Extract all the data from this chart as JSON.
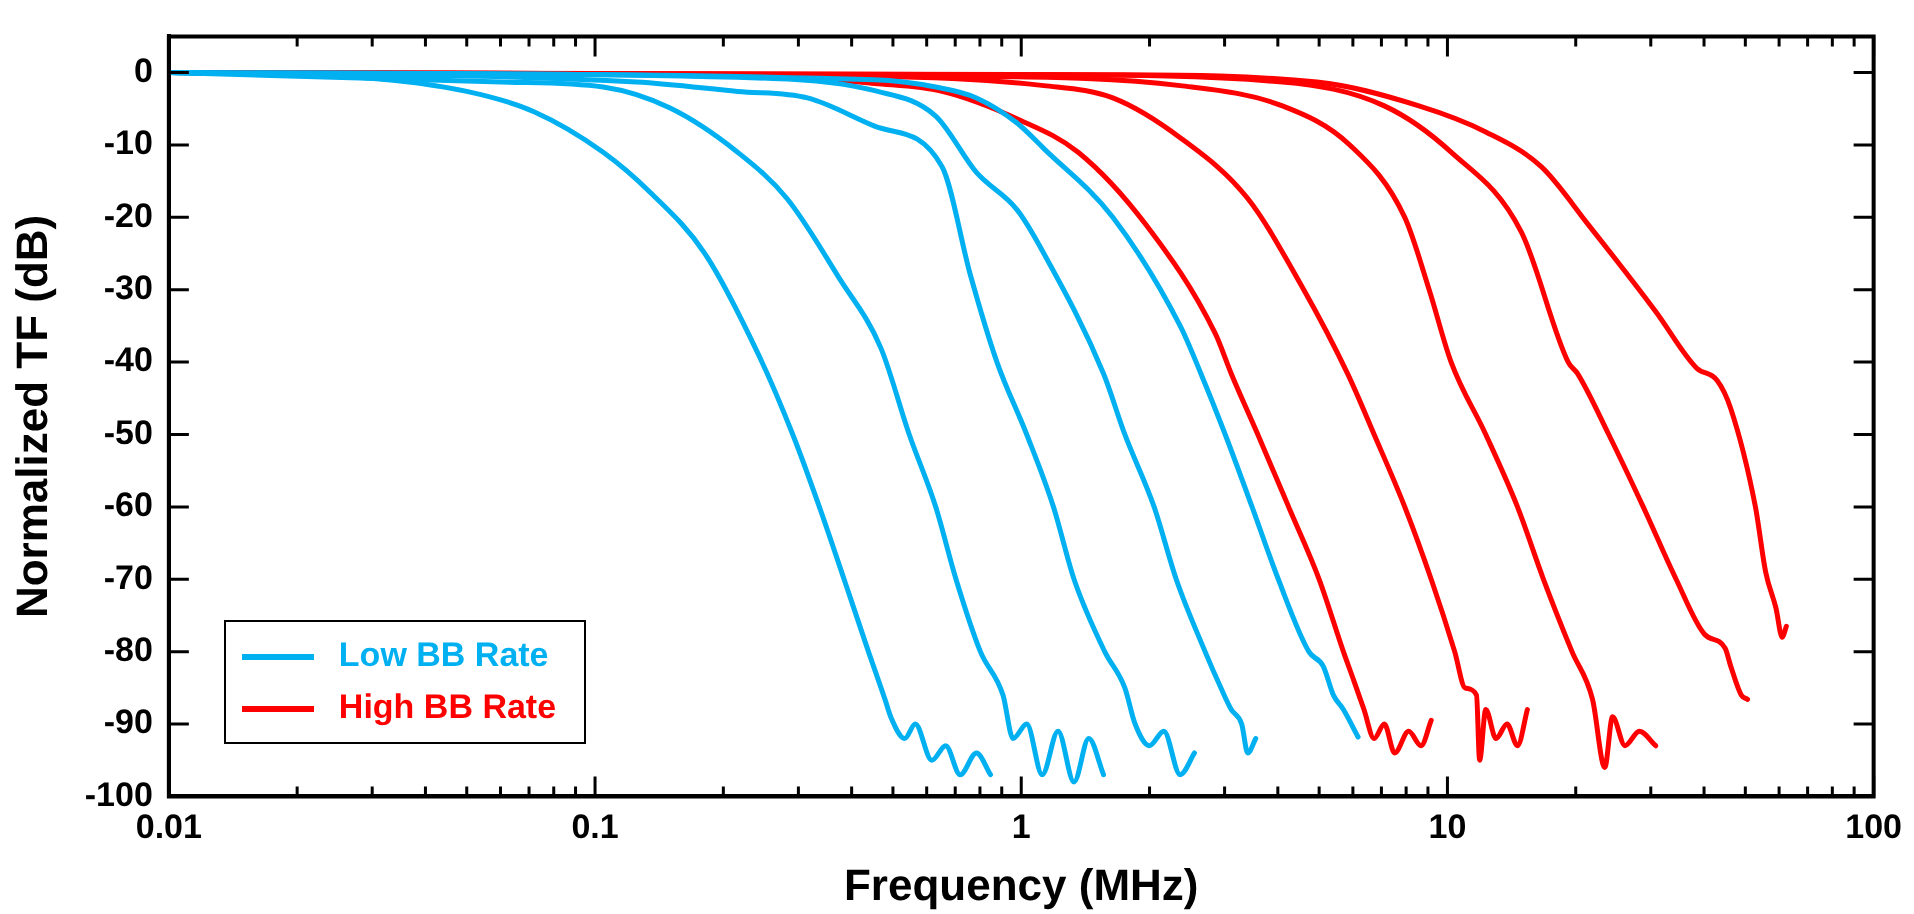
{
  "chart_data": {
    "type": "line",
    "xlabel": "Frequency (MHz)",
    "ylabel": "Normalized TF (dB)",
    "log": "x",
    "grid": false,
    "legend": "bottom left",
    "marker": "none",
    "line_style": "solid",
    "xlim": [
      0.01,
      100
    ],
    "xticks": [
      0.01,
      {
        "value": 0.02,
        "label": null
      },
      {
        "value": 0.03,
        "label": null
      },
      {
        "value": 0.04,
        "label": null
      },
      {
        "value": 0.05,
        "label": null
      },
      {
        "value": 0.06,
        "label": null
      },
      {
        "value": 0.07,
        "label": null
      },
      {
        "value": 0.08,
        "label": null
      },
      {
        "value": 0.09,
        "label": null
      },
      0.1,
      {
        "value": 0.2,
        "label": null
      },
      {
        "value": 0.3,
        "label": null
      },
      {
        "value": 0.4,
        "label": null
      },
      {
        "value": 0.5,
        "label": null
      },
      {
        "value": 0.6,
        "label": null
      },
      {
        "value": 0.7,
        "label": null
      },
      {
        "value": 0.8,
        "label": null
      },
      {
        "value": 0.9,
        "label": null
      },
      1,
      {
        "value": 2,
        "label": null
      },
      {
        "value": 3,
        "label": null
      },
      {
        "value": 4,
        "label": null
      },
      {
        "value": 5,
        "label": null
      },
      {
        "value": 6,
        "label": null
      },
      {
        "value": 7,
        "label": null
      },
      {
        "value": 8,
        "label": null
      },
      {
        "value": 9,
        "label": null
      },
      10,
      {
        "value": 20,
        "label": null
      },
      {
        "value": 30,
        "label": null
      },
      {
        "value": 40,
        "label": null
      },
      {
        "value": 50,
        "label": null
      },
      {
        "value": 60,
        "label": null
      },
      {
        "value": 70,
        "label": null
      },
      {
        "value": 80,
        "label": null
      },
      {
        "value": 90,
        "label": null
      },
      100
    ],
    "ylim": [
      -100,
      5
    ],
    "yticks": [
      0,
      -10,
      -20,
      -30,
      -40,
      -50,
      -60,
      -70,
      -80,
      -90,
      -100
    ],
    "series": [
      {
        "name": "Low BB Rate",
        "color": "#00b0f0",
        "x": [
          0.01,
          0.0288,
          0.05,
          0.0719,
          0.1045,
          0.135,
          0.181,
          0.242,
          0.291,
          0.336,
          0.384,
          0.438,
          0.479,
          0.494,
          0.533,
          0.564,
          0.617,
          0.665,
          0.719,
          0.785,
          0.847
        ],
        "values": [
          0,
          -0.7,
          -2.6,
          -5.4,
          -11,
          -16.6,
          -25,
          -39,
          -50,
          -60,
          -70,
          -80,
          -86.6,
          -89,
          -92,
          -90,
          -95,
          -93,
          -97,
          -94,
          -97
        ]
      },
      {
        "color": "#00b0f0",
        "x": [
          0.01,
          0.0603,
          0.1045,
          0.15,
          0.216,
          0.282,
          0.375,
          0.468,
          0.546,
          0.63,
          0.703,
          0.802,
          0.906,
          0.957,
          1.03,
          1.12,
          1.22,
          1.33,
          1.44,
          1.56
        ],
        "values": [
          0,
          -1.3,
          -2,
          -4.9,
          -11,
          -17.4,
          -28.5,
          -38,
          -50,
          -60,
          -70,
          -80,
          -86,
          -92,
          -90,
          -97,
          -91,
          -98,
          -92,
          -97
        ]
      },
      {
        "color": "#00b0f0",
        "x": [
          0.01,
          0.125,
          0.216,
          0.315,
          0.453,
          0.652,
          0.76,
          0.877,
          1.03,
          1.19,
          1.33,
          1.57,
          1.75,
          1.85,
          2.0,
          2.16,
          2.36,
          2.55
        ],
        "values": [
          0,
          -1.3,
          -2.6,
          -3.5,
          -7.4,
          -13,
          -28,
          -40,
          -50,
          -60,
          -70,
          -80,
          -85,
          -90,
          -93,
          -91,
          -97,
          -94
        ]
      },
      {
        "color": "#00b0f0",
        "x": [
          0.01,
          0.261,
          0.453,
          0.63,
          0.785,
          0.979,
          1.13,
          1.56,
          1.75,
          2.05,
          2.31,
          2.7,
          2.94,
          3.11,
          3.29,
          3.4,
          3.55
        ],
        "values": [
          0,
          -0.8,
          -2.5,
          -6,
          -13.8,
          -19,
          -25,
          -41.6,
          -50,
          -60,
          -70,
          -80,
          -85,
          -88,
          -90,
          -94,
          -92
        ]
      },
      {
        "color": "#00b0f0",
        "x": [
          0.01,
          0.453,
          0.63,
          0.785,
          0.979,
          1.13,
          1.64,
          2.36,
          2.64,
          3.01,
          3.48,
          4.01,
          4.73,
          5.11,
          5.4,
          5.7,
          6.17
        ],
        "values": [
          0,
          -1,
          -2,
          -3.5,
          -7,
          -10.5,
          -20,
          -35,
          -41.6,
          -50,
          -60,
          -70,
          -80,
          -82,
          -86,
          -88,
          -91.8
        ]
      },
      {
        "name": "High BB Rate",
        "color": "#ff0000",
        "x": [
          0.01,
          0.261,
          0.453,
          0.652,
          0.979,
          1.36,
          1.96,
          2.85,
          3.11,
          3.59,
          4.24,
          5.0,
          5.7,
          6.03,
          6.37,
          6.73,
          7.11,
          7.52,
          8.11,
          8.67,
          9.16
        ],
        "values": [
          0,
          -0.5,
          -1.5,
          -2.6,
          -6.4,
          -11,
          -21,
          -36,
          -41.6,
          -50,
          -60,
          -70,
          -80,
          -84,
          -88,
          -92,
          -90,
          -94,
          -91,
          -93,
          -89.5
        ]
      },
      {
        "color": "#ff0000",
        "x": [
          0.01,
          0.453,
          1.13,
          1.64,
          2.36,
          3.4,
          4.57,
          5.83,
          6.73,
          7.94,
          9.16,
          10.4,
          11.0,
          11.7,
          11.9,
          12.3,
          13.0,
          13.8,
          14.6,
          15.4
        ],
        "values": [
          0,
          -0.5,
          -1.8,
          -3.5,
          -9,
          -17.4,
          -29.7,
          -41.6,
          -50,
          -60,
          -70,
          -80,
          -85,
          -86,
          -95,
          -88,
          -92,
          -90,
          -93,
          -88
        ]
      },
      {
        "color": "#ff0000",
        "x": [
          0.01,
          0.785,
          2.36,
          4.1,
          5.9,
          7.94,
          9.06,
          10.2,
          12.3,
          14.6,
          16.8,
          19.6,
          21.9,
          23.4,
          24.4,
          26.1,
          28.2,
          30.8
        ],
        "values": [
          0,
          -0.5,
          -1.8,
          -4.6,
          -10,
          -20,
          -30,
          -40,
          -50,
          -60,
          -70,
          -80,
          -86.6,
          -96,
          -89,
          -93,
          -91,
          -93
        ]
      },
      {
        "color": "#ff0000",
        "x": [
          0.01,
          1.03,
          4.1,
          7.11,
          10.2,
          14.9,
          19.2,
          20.2,
          23.9,
          28.8,
          34.4,
          40.1,
          44.8,
          46.2,
          48.9,
          50.6
        ],
        "values": [
          0,
          -0.3,
          -1.3,
          -4.6,
          -11,
          -22,
          -40,
          -41.6,
          -50,
          -60,
          -70,
          -77.6,
          -79.5,
          -82,
          -86,
          -86.6
        ]
      },
      {
        "color": "#ff0000",
        "x": [
          0.01,
          1.56,
          4.94,
          8.57,
          12.3,
          16.6,
          21.4,
          30.8,
          38.4,
          42.9,
          46.2,
          52.8,
          55.8,
          59.0,
          61.0,
          62.4
        ],
        "values": [
          0,
          -0.3,
          -1.3,
          -4.6,
          -8.2,
          -13,
          -21,
          -33,
          -40.8,
          -42.5,
          -46.4,
          -60,
          -69,
          -74,
          -78,
          -76.5
        ]
      }
    ]
  }
}
